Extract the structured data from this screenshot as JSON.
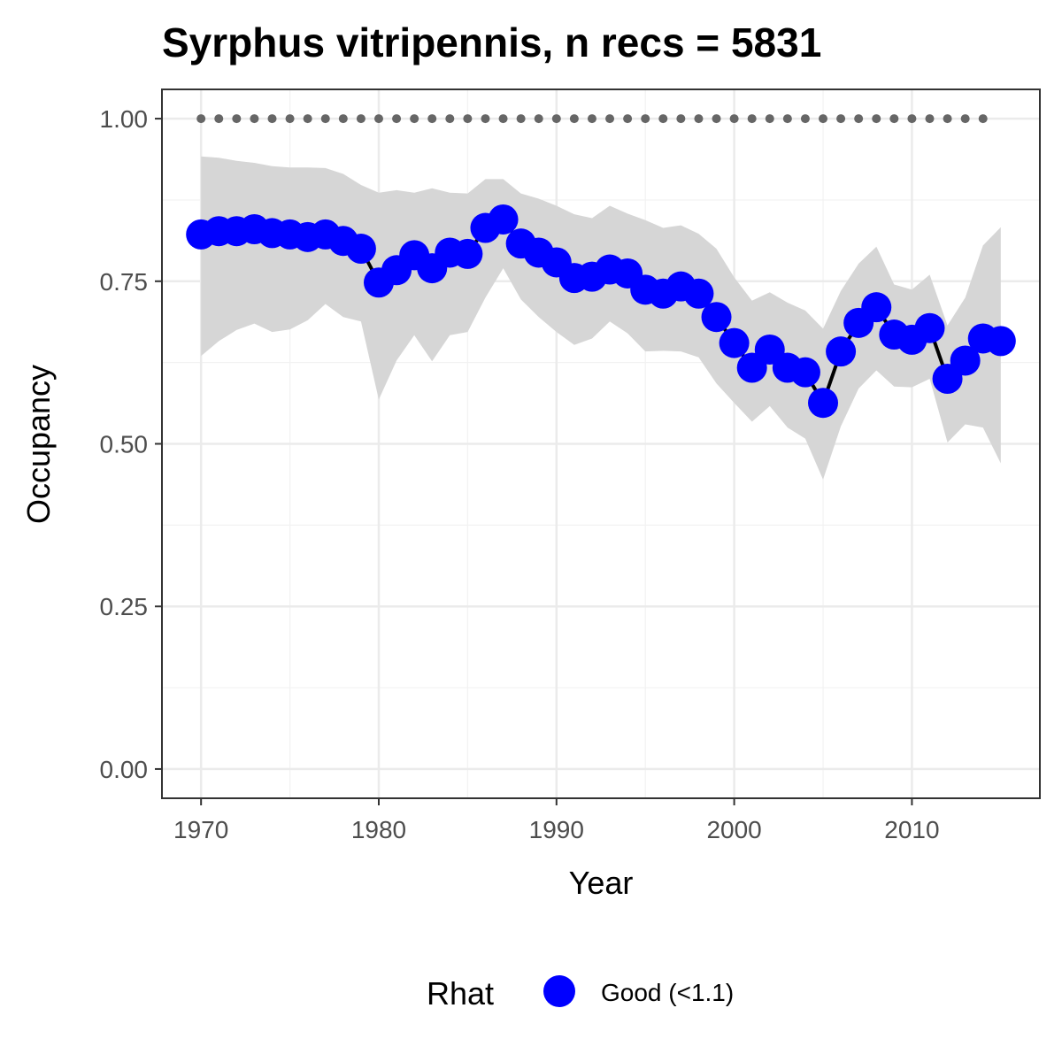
{
  "chart_data": {
    "type": "line",
    "title": "Syrphus vitripennis, n recs = 5831",
    "xlabel": "Year",
    "ylabel": "Occupancy",
    "xlim": [
      1967.8,
      2017.2
    ],
    "ylim": [
      -0.045,
      1.045
    ],
    "x_ticks": [
      1970,
      1980,
      1990,
      2000,
      2010
    ],
    "x_tick_labels": [
      "1970",
      "1980",
      "1990",
      "2000",
      "2010"
    ],
    "y_ticks": [
      0,
      0.25,
      0.5,
      0.75,
      1
    ],
    "y_tick_labels": [
      "0.00",
      "0.25",
      "0.50",
      "0.75",
      "1.00"
    ],
    "grid": true,
    "legend": {
      "position": "bottom",
      "title": "Rhat",
      "entries": [
        {
          "label": "Good (<1.1)",
          "color": "#0000ff"
        }
      ]
    },
    "colors": {
      "points": "#0000ff",
      "line": "#000000",
      "ribbon": "#d6d6d6",
      "reference": "#666666"
    },
    "reference_line": {
      "value": 1.0,
      "x": [
        1970,
        1971,
        1972,
        1973,
        1974,
        1975,
        1976,
        1977,
        1978,
        1979,
        1980,
        1981,
        1982,
        1983,
        1984,
        1985,
        1986,
        1987,
        1988,
        1989,
        1990,
        1991,
        1992,
        1993,
        1994,
        1995,
        1996,
        1997,
        1998,
        1999,
        2000,
        2001,
        2002,
        2003,
        2004,
        2005,
        2006,
        2007,
        2008,
        2009,
        2010,
        2011,
        2012,
        2013,
        2014
      ]
    },
    "series": [
      {
        "name": "Good (<1.1)",
        "x": [
          1970,
          1971,
          1972,
          1973,
          1974,
          1975,
          1976,
          1977,
          1978,
          1979,
          1980,
          1981,
          1982,
          1983,
          1984,
          1985,
          1986,
          1987,
          1988,
          1989,
          1990,
          1991,
          1992,
          1993,
          1994,
          1995,
          1996,
          1997,
          1998,
          1999,
          2000,
          2001,
          2002,
          2003,
          2004,
          2005,
          2006,
          2007,
          2008,
          2009,
          2010,
          2011,
          2012,
          2013,
          2014,
          2015
        ],
        "y": [
          0.822,
          0.827,
          0.827,
          0.83,
          0.824,
          0.822,
          0.818,
          0.822,
          0.812,
          0.8,
          0.748,
          0.767,
          0.79,
          0.77,
          0.794,
          0.792,
          0.832,
          0.845,
          0.808,
          0.794,
          0.779,
          0.755,
          0.757,
          0.768,
          0.762,
          0.737,
          0.731,
          0.742,
          0.731,
          0.695,
          0.655,
          0.617,
          0.645,
          0.617,
          0.61,
          0.563,
          0.642,
          0.686,
          0.71,
          0.668,
          0.66,
          0.678,
          0.6,
          0.628,
          0.662,
          0.658
        ],
        "lower": [
          0.635,
          0.658,
          0.675,
          0.685,
          0.672,
          0.676,
          0.69,
          0.715,
          0.695,
          0.688,
          0.568,
          0.628,
          0.667,
          0.627,
          0.667,
          0.672,
          0.725,
          0.77,
          0.722,
          0.695,
          0.672,
          0.652,
          0.662,
          0.688,
          0.67,
          0.642,
          0.643,
          0.642,
          0.633,
          0.593,
          0.563,
          0.534,
          0.558,
          0.525,
          0.508,
          0.445,
          0.527,
          0.585,
          0.613,
          0.588,
          0.587,
          0.6,
          0.502,
          0.53,
          0.525,
          0.47
        ],
        "upper": [
          0.942,
          0.94,
          0.935,
          0.932,
          0.927,
          0.925,
          0.925,
          0.924,
          0.915,
          0.898,
          0.886,
          0.89,
          0.886,
          0.893,
          0.886,
          0.885,
          0.907,
          0.907,
          0.885,
          0.877,
          0.866,
          0.853,
          0.847,
          0.866,
          0.854,
          0.844,
          0.832,
          0.836,
          0.823,
          0.8,
          0.756,
          0.72,
          0.733,
          0.717,
          0.705,
          0.677,
          0.735,
          0.777,
          0.803,
          0.745,
          0.737,
          0.76,
          0.682,
          0.725,
          0.805,
          0.833
        ]
      }
    ]
  }
}
